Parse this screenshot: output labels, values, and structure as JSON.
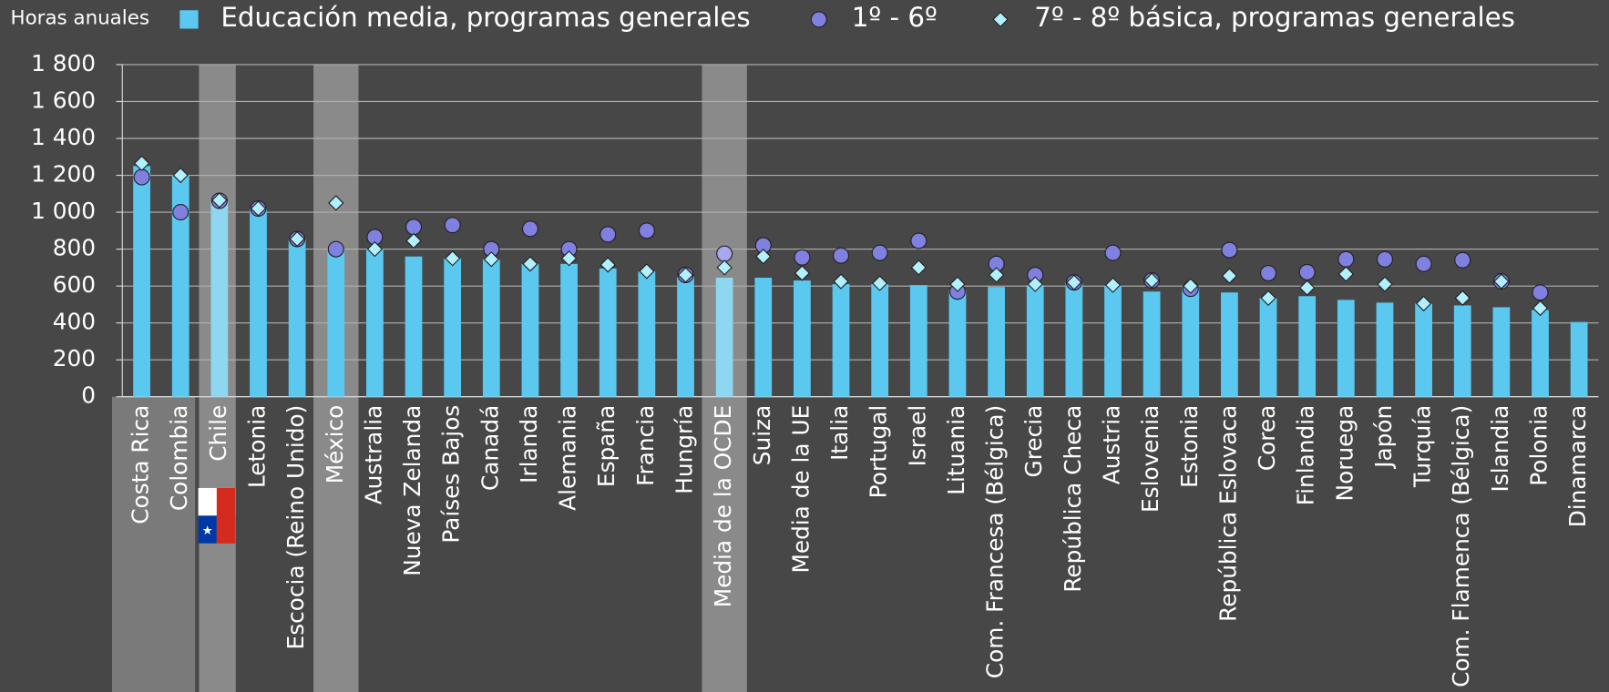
{
  "chart_data": {
    "type": "bar",
    "ylabel": "Horas anuales",
    "categories": [
      "Costa Rica",
      "Colombia",
      "Chile",
      "Letonia",
      "Escocia (Reino Unido)",
      "México",
      "Australia",
      "Nueva Zelanda",
      "Países Bajos",
      "Canadá",
      "Irlanda",
      "Alemania",
      "España",
      "Francia",
      "Hungría",
      "Media de la OCDE",
      "Suiza",
      "Media de la UE",
      "Italia",
      "Portugal",
      "Israel",
      "Lituania",
      "Com. Francesa (Bélgica)",
      "Grecia",
      "República Checa",
      "Austria",
      "Eslovenia",
      "Estonia",
      "República Eslovaca",
      "Corea",
      "Finlandia",
      "Noruega",
      "Japón",
      "Turquía",
      "Com. Flamenca (Bélgica)",
      "Islandia",
      "Polonia",
      "Dinamarca"
    ],
    "series": [
      {
        "name": "Educación media, programas generales",
        "color": "#5bc8f0",
        "marker": "bar",
        "values": [
          1250,
          1200,
          1060,
          1020,
          855,
          800,
          800,
          760,
          750,
          745,
          720,
          720,
          695,
          680,
          650,
          645,
          645,
          630,
          610,
          610,
          605,
          580,
          595,
          605,
          620,
          600,
          570,
          595,
          565,
          535,
          545,
          525,
          510,
          505,
          495,
          485,
          470,
          405
        ]
      },
      {
        "name": "1º - 6º",
        "color": "#8080e0",
        "marker": "circle",
        "values": [
          1190,
          1000,
          1062,
          1020,
          855,
          800,
          865,
          920,
          930,
          800,
          910,
          800,
          880,
          900,
          660,
          775,
          820,
          755,
          765,
          780,
          845,
          570,
          720,
          660,
          620,
          780,
          630,
          585,
          795,
          670,
          675,
          745,
          745,
          720,
          740,
          625,
          565,
          null
        ]
      },
      {
        "name": "7º - 8º básica, programas generales",
        "color": "#b0f0ff",
        "marker": "diamond",
        "values": [
          1265,
          1200,
          1065,
          1020,
          855,
          1050,
          800,
          845,
          750,
          745,
          720,
          750,
          715,
          680,
          660,
          700,
          760,
          670,
          625,
          615,
          700,
          610,
          660,
          610,
          620,
          605,
          630,
          600,
          655,
          535,
          590,
          665,
          610,
          505,
          535,
          625,
          480,
          null
        ]
      }
    ],
    "ylim": [
      0,
      1800
    ],
    "yticks": [
      0,
      {
        "value": 200,
        "label": "200"
      },
      {
        "value": 400,
        "label": "400"
      },
      {
        "value": 600,
        "label": "600"
      },
      {
        "value": 800,
        "label": "800"
      },
      {
        "value": 1000,
        "label": "1 000"
      },
      {
        "value": 1200,
        "label": "1 200"
      },
      {
        "value": 1400,
        "label": "1 400"
      },
      {
        "value": 1600,
        "label": "1 600"
      },
      {
        "value": 1800,
        "label": "1 800"
      }
    ],
    "grid": true
  }
}
